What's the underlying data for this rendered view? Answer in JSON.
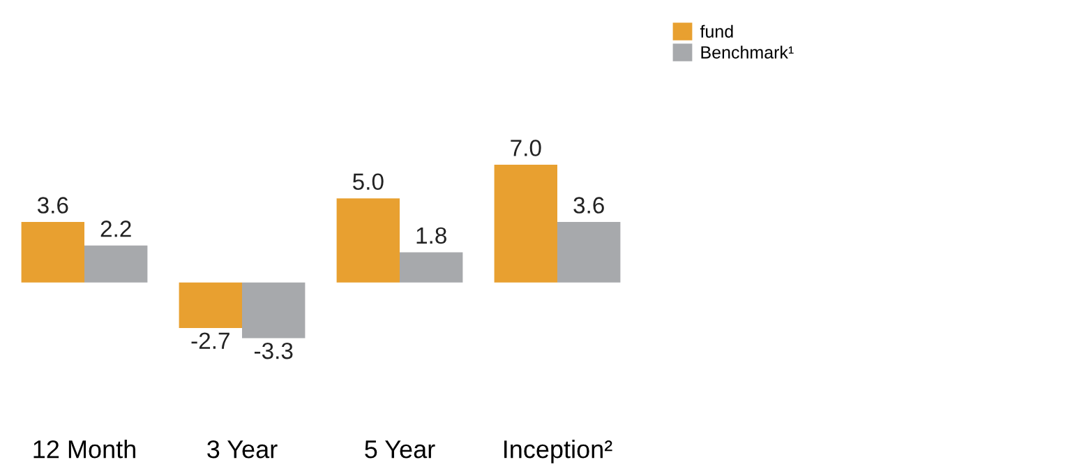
{
  "chart_data": {
    "type": "bar",
    "categories": [
      "12 Month",
      "3 Year",
      "5 Year",
      "Inception²"
    ],
    "series": [
      {
        "name": "fund",
        "color": "#e8a030",
        "values": [
          3.6,
          -2.7,
          5.0,
          7.0
        ],
        "value_labels": [
          "3.6",
          "-2.7",
          "5.0",
          "7.0"
        ]
      },
      {
        "name": "Benchmark¹",
        "color": "#a7a9ac",
        "values": [
          2.2,
          -3.3,
          1.8,
          3.6
        ],
        "value_labels": [
          "2.2",
          "-3.3",
          "1.8",
          "3.6"
        ]
      }
    ],
    "legend": "top right",
    "grid": false
  }
}
